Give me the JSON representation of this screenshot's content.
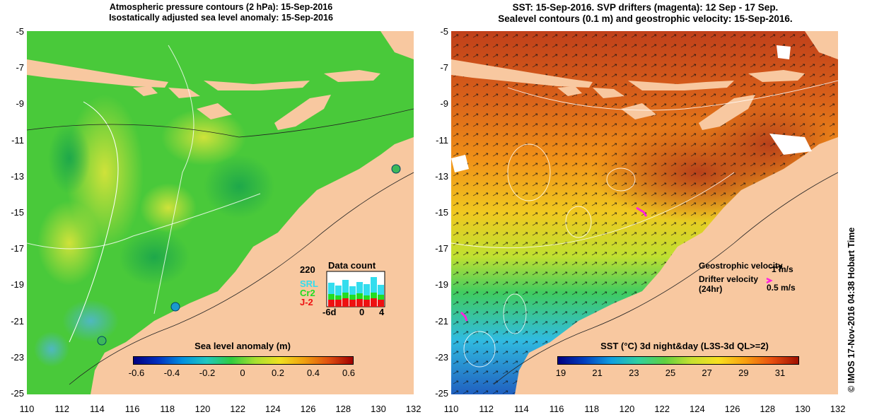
{
  "left_panel": {
    "title_line1": "Atmospheric pressure contours (2 hPa): 15-Sep-2016",
    "title_line2": "Isostatically adjusted sea level anomaly: 15-Sep-2016",
    "colorbar": {
      "title": "Sea level anomaly (m)",
      "ticks": [
        "-0.6",
        "-0.4",
        "-0.2",
        "0",
        "0.2",
        "0.4",
        "0.6"
      ]
    },
    "data_count": {
      "title": "Data count",
      "ymax_label": "220",
      "series": [
        {
          "name": "SRL",
          "color": "#33ddee"
        },
        {
          "name": "Cr2",
          "color": "#22dd22"
        },
        {
          "name": "J-2",
          "color": "#ee1111"
        }
      ],
      "x_ticks": [
        "-6d",
        "0",
        "4"
      ]
    }
  },
  "right_panel": {
    "title_line1": "SST: 15-Sep-2016. SVP drifters (magenta): 12 Sep - 17 Sep.",
    "title_line2": "Sealevel contours (0.1 m) and geostrophic velocity: 15-Sep-2016.",
    "colorbar": {
      "title": "SST (°C) 3d night&day (L3S-3d QL>=2)",
      "ticks": [
        "19",
        "21",
        "23",
        "25",
        "27",
        "29",
        "31"
      ]
    },
    "legend": {
      "geostrophic_label": "Geostrophic velocity",
      "geostrophic_scale": "1 m/s",
      "drifter_label_line1": "Drifter velocity",
      "drifter_label_line2": "(24hr)",
      "drifter_scale": "0.5 m/s"
    }
  },
  "axes": {
    "y_ticks": [
      "-5",
      "-7",
      "-9",
      "-11",
      "-13",
      "-15",
      "-17",
      "-19",
      "-21",
      "-23",
      "-25"
    ],
    "x_ticks": [
      "110",
      "112",
      "114",
      "116",
      "118",
      "120",
      "122",
      "124",
      "126",
      "128",
      "130",
      "132"
    ]
  },
  "side_label": "© IMOS 17-Nov-2016 04:38 Hobart Time",
  "colors": {
    "land": "#f8c8a0",
    "sla_ocean": "#44cc33",
    "sst_warm": "#c84a14",
    "sst_mid": "#f0a018",
    "sst_cool": "#33bbee"
  }
}
